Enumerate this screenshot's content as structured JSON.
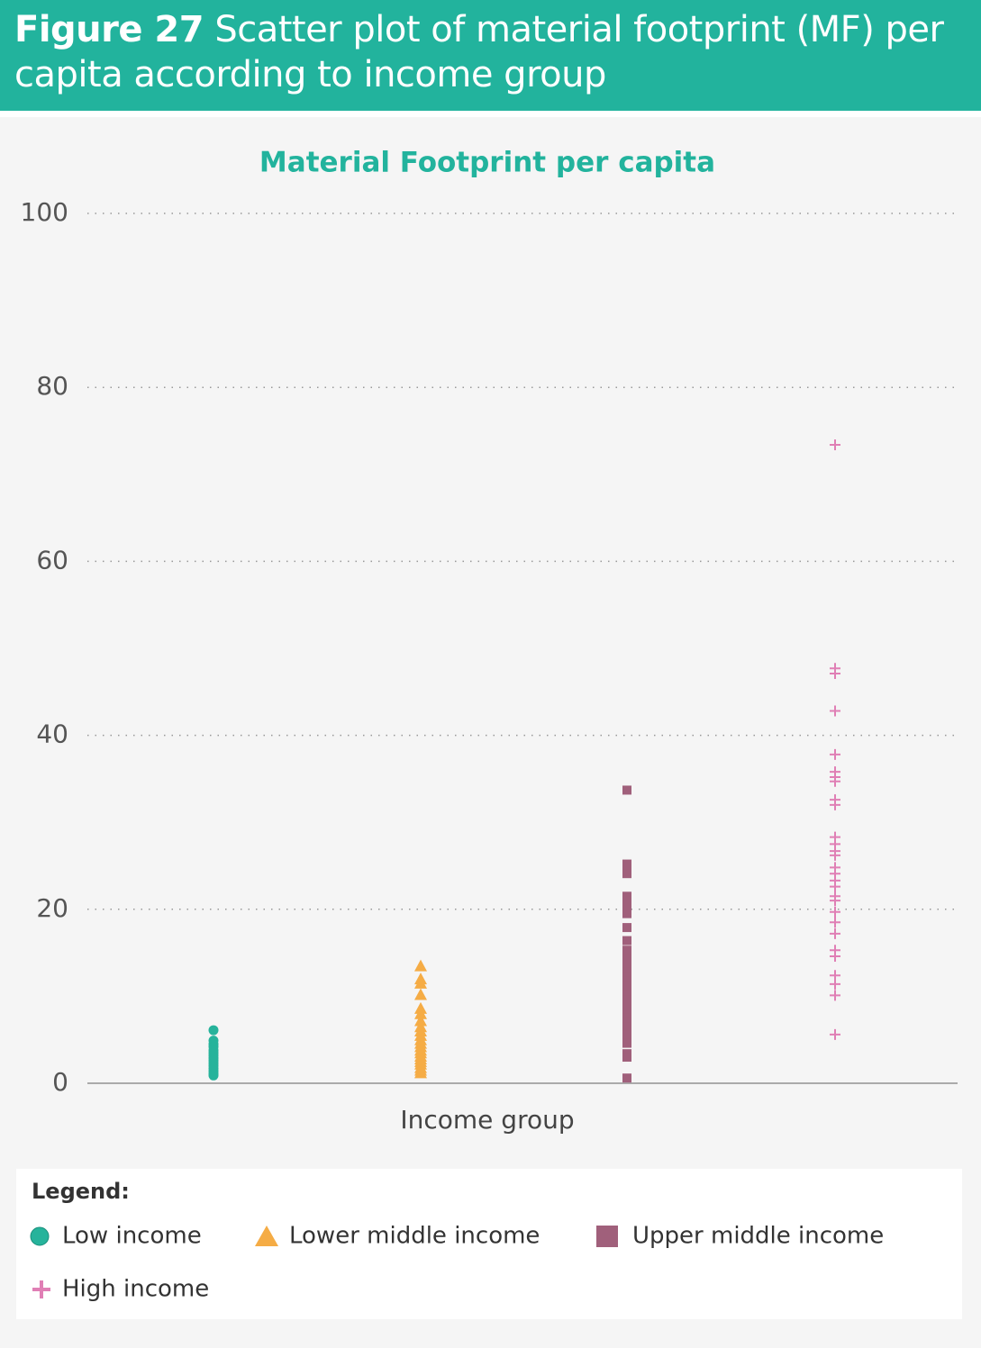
{
  "chart_data": {
    "type": "strip",
    "figure_label": "Figure 27",
    "title": "Scatter plot of material footprint (MF) per capita according to income group",
    "subtitle": "Material Footprint per capita",
    "x_label": "Income group",
    "legend_title": "Legend:",
    "ylim": [
      0,
      100
    ],
    "yticks": [
      0,
      20,
      40,
      60,
      80,
      100
    ],
    "grid": true,
    "series": [
      {
        "name": "Low income",
        "color": "#26b39b",
        "marker": "circle",
        "values": [
          6.1,
          4.9,
          4.5,
          4.2,
          3.8,
          3.5,
          3.2,
          2.9,
          2.6,
          2.3,
          2.0,
          1.7,
          1.4,
          1.1,
          0.9
        ]
      },
      {
        "name": "Lower middle income",
        "color": "#f5ac45",
        "marker": "triangle",
        "values": [
          13.5,
          12.0,
          11.5,
          10.2,
          8.6,
          8.0,
          7.2,
          6.5,
          6.0,
          5.5,
          5.0,
          4.6,
          4.2,
          3.8,
          3.5,
          3.1,
          2.8,
          2.5,
          2.2,
          1.8,
          1.5,
          1.2
        ]
      },
      {
        "name": "Upper middle income",
        "color": "#a0607b",
        "marker": "square",
        "values": [
          33.7,
          25.2,
          24.5,
          24.1,
          21.5,
          21.0,
          20.2,
          19.5,
          17.9,
          16.4,
          15.3,
          15.0,
          14.3,
          13.8,
          13.3,
          12.8,
          12.2,
          11.8,
          11.2,
          10.6,
          10.1,
          9.6,
          9.1,
          8.6,
          8.1,
          7.5,
          7.0,
          6.5,
          6.0,
          5.5,
          5.0,
          4.6,
          3.4,
          3.0,
          0.6
        ]
      },
      {
        "name": "High income",
        "color": "#e07fb5",
        "marker": "plus",
        "values": [
          73.4,
          47.7,
          47.1,
          42.8,
          37.8,
          35.8,
          35.2,
          34.7,
          32.6,
          32.0,
          28.3,
          27.5,
          26.7,
          26.2,
          24.8,
          24.1,
          23.3,
          22.6,
          21.5,
          21.0,
          19.7,
          18.5,
          17.2,
          15.3,
          14.6,
          12.4,
          11.4,
          10.1,
          5.6
        ]
      }
    ]
  }
}
